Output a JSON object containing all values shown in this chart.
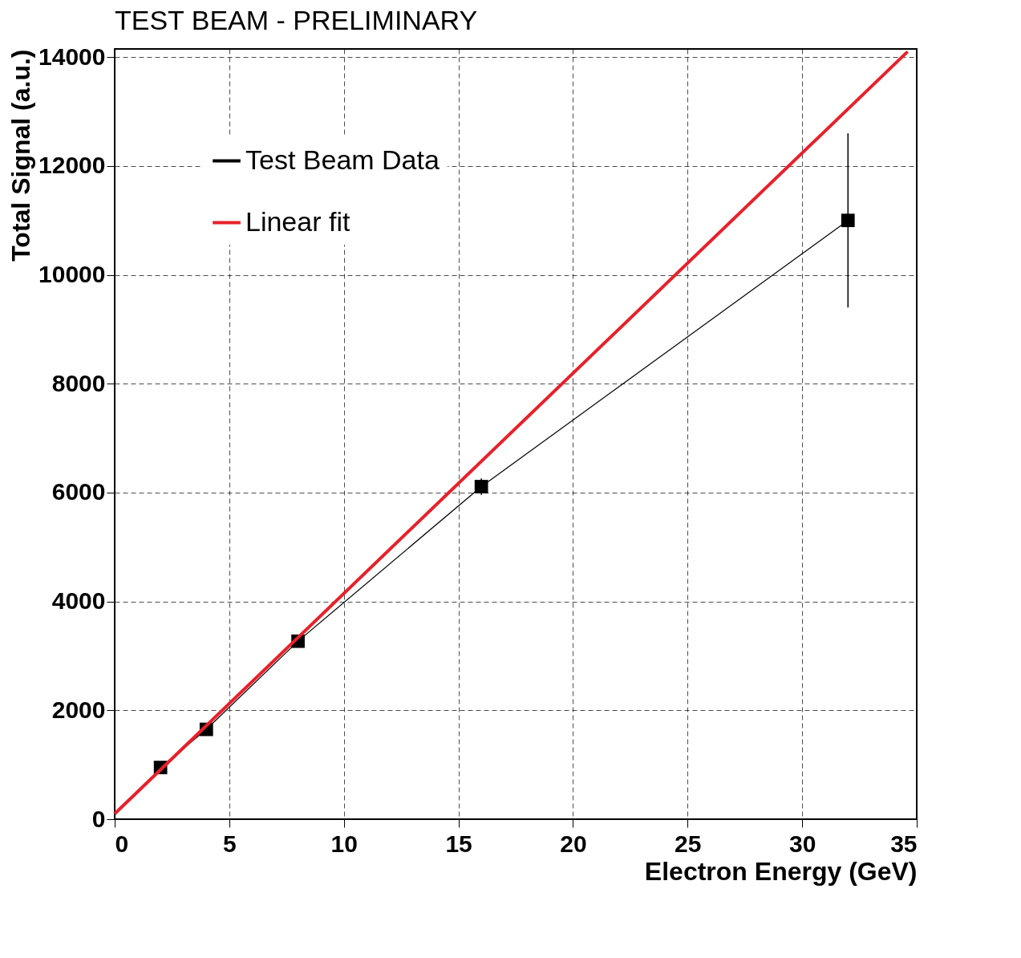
{
  "chart_data": {
    "type": "line",
    "title": "TEST BEAM - PRELIMINARY",
    "xlabel": "Electron Energy (GeV)",
    "ylabel": "Total Signal (a.u.)",
    "xlim": [
      0,
      35
    ],
    "ylim": [
      0,
      14150
    ],
    "xticks": [
      0,
      5,
      10,
      15,
      20,
      25,
      30,
      35
    ],
    "yticks": [
      0,
      2000,
      4000,
      6000,
      8000,
      10000,
      12000,
      14000
    ],
    "grid": true,
    "legend": "top left",
    "series": [
      {
        "name": "Test Beam Data",
        "color": "#000000",
        "x": [
          2,
          4,
          8,
          16,
          32
        ],
        "values": [
          950,
          1650,
          3270,
          6110,
          11000
        ],
        "errors": [
          null,
          null,
          null,
          150,
          1600
        ],
        "marker": "square"
      },
      {
        "name": "Linear fit",
        "color": "#e8202a",
        "x": [
          0,
          34.6
        ],
        "values": [
          100,
          14100
        ],
        "marker": "none"
      }
    ]
  }
}
